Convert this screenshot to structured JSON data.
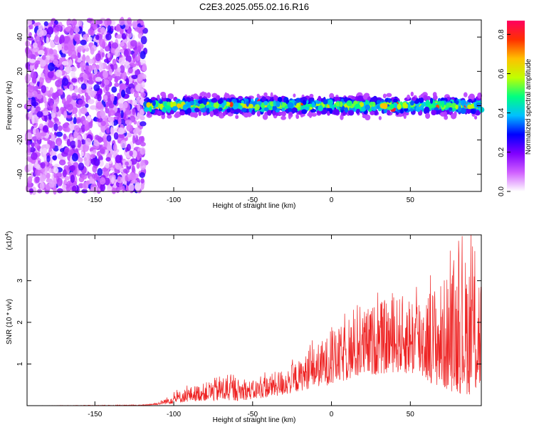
{
  "title": "C2E3.2025.055.02.16.R16",
  "chart_data": [
    {
      "type": "heatmap",
      "xlabel": "Height of straight line (km)",
      "ylabel": "Frequency (Hz)",
      "xlim": [
        -193,
        95
      ],
      "ylim": [
        -50,
        50
      ],
      "xticks": [
        -150,
        -100,
        -50,
        0,
        50
      ],
      "yticks": [
        -40,
        -20,
        0,
        20,
        40
      ],
      "colorbar": {
        "label": "Normalized spectral amplitude",
        "range": [
          0.0,
          0.87
        ],
        "ticks": [
          "0.0",
          "0.2",
          "0.4",
          "0.6",
          "0.8"
        ],
        "colors": [
          "#ffffff",
          "#d060ff",
          "#8000ff",
          "#0000ff",
          "#00c0ff",
          "#00ff80",
          "#c0ff00",
          "#ffc000",
          "#ff3000",
          "#ff0060"
        ]
      },
      "features": [
        {
          "x_range": [
            -193,
            -118
          ],
          "y_range": [
            -50,
            50
          ],
          "amplitude": 0.05,
          "description": "broad low-amplitude noise"
        },
        {
          "x_range": [
            -118,
            95
          ],
          "y_center": 0,
          "y_halfwidth": 8,
          "amplitude_peak": 0.87,
          "description": "narrow band near 0 Hz"
        }
      ]
    },
    {
      "type": "line",
      "xlabel": "Height of straight line (km)",
      "ylabel": "SNR (10 * v/v)",
      "yscale_label": "(x10",
      "yscale_exp": "4",
      "xlim": [
        -193,
        95
      ],
      "ylim": [
        0,
        4.1
      ],
      "xticks": [
        -150,
        -100,
        -50,
        0,
        50
      ],
      "yticks": [
        1,
        2,
        3
      ],
      "color": "#ee2222",
      "envelope": {
        "x": [
          -193,
          -120,
          -110,
          -100,
          -90,
          -80,
          -70,
          -60,
          -50,
          -40,
          -30,
          -20,
          -10,
          0,
          10,
          20,
          30,
          40,
          50,
          60,
          70,
          80,
          90,
          95
        ],
        "low": [
          0.0,
          0.0,
          0.02,
          0.05,
          0.1,
          0.12,
          0.1,
          0.12,
          0.15,
          0.2,
          0.25,
          0.35,
          0.45,
          0.5,
          0.6,
          0.7,
          0.75,
          0.8,
          0.75,
          0.6,
          0.4,
          0.3,
          0.25,
          0.3
        ],
        "high": [
          0.0,
          0.02,
          0.08,
          0.3,
          0.45,
          0.55,
          0.75,
          0.65,
          0.6,
          0.75,
          0.9,
          1.1,
          1.45,
          1.75,
          2.0,
          2.3,
          2.5,
          2.6,
          2.7,
          2.8,
          3.0,
          3.5,
          3.7,
          3.4
        ]
      }
    }
  ]
}
